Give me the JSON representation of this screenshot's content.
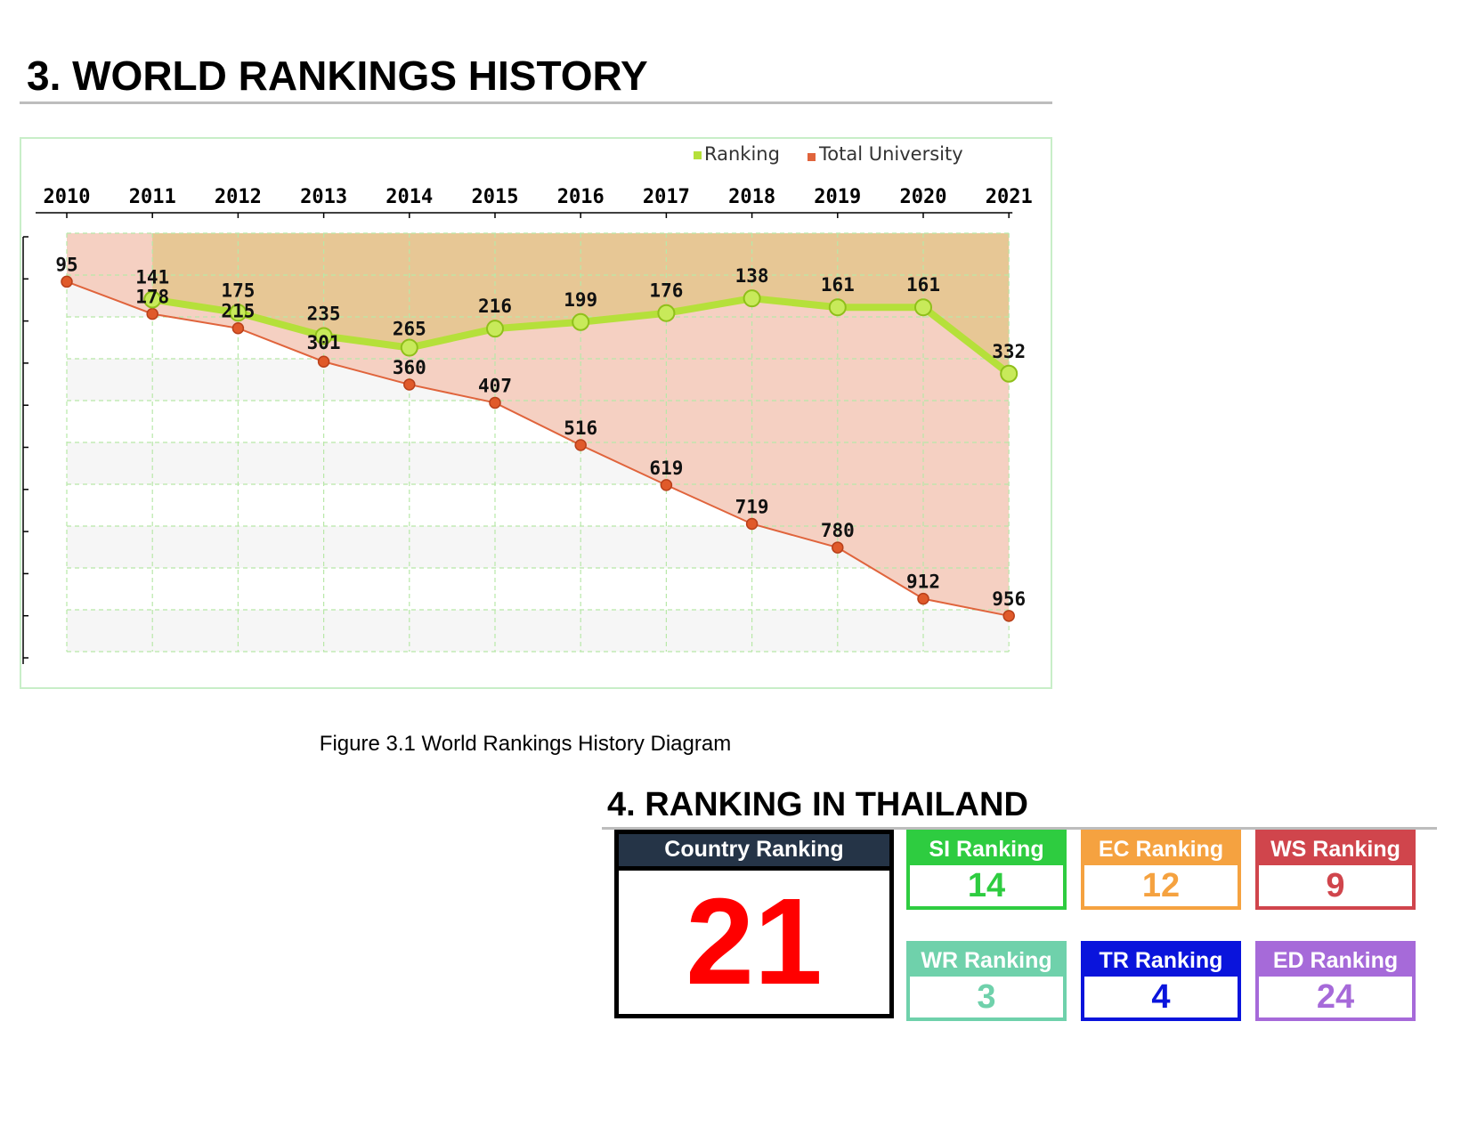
{
  "section3": {
    "heading": "3. WORLD RANKINGS HISTORY",
    "caption": "Figure 3.1 World Rankings History Diagram"
  },
  "chart_data": {
    "type": "line",
    "title": "",
    "xlabel": "",
    "ylabel": "",
    "x": [
      "2010",
      "2011",
      "2012",
      "2013",
      "2014",
      "2015",
      "2016",
      "2017",
      "2018",
      "2019",
      "2020",
      "2021"
    ],
    "y_inverted": true,
    "ylim": [
      0,
      1000
    ],
    "grid": true,
    "legend_position": "top-right",
    "series": [
      {
        "name": "Ranking",
        "color": "#b5e03a",
        "values": [
          null,
          141,
          175,
          235,
          265,
          216,
          199,
          176,
          138,
          161,
          161,
          332
        ]
      },
      {
        "name": "Total University",
        "color": "#e0643c",
        "values": [
          95,
          178,
          215,
          301,
          360,
          407,
          516,
          619,
          719,
          780,
          912,
          956
        ]
      }
    ]
  },
  "section4": {
    "heading": "4. RANKING IN THAILAND",
    "country": {
      "label": "Country Ranking",
      "value": "21",
      "color": "#ff0000",
      "head_color": "#253447"
    },
    "cards": [
      {
        "label": "SI Ranking",
        "value": "14",
        "color": "#2ecc40"
      },
      {
        "label": "EC Ranking",
        "value": "12",
        "color": "#f5a240"
      },
      {
        "label": "WS Ranking",
        "value": "9",
        "color": "#d0454c"
      },
      {
        "label": "WR Ranking",
        "value": "3",
        "color": "#6fd1ab"
      },
      {
        "label": "TR Ranking",
        "value": "4",
        "color": "#0a14dc"
      },
      {
        "label": "ED Ranking",
        "value": "24",
        "color": "#a66ad9"
      }
    ]
  }
}
